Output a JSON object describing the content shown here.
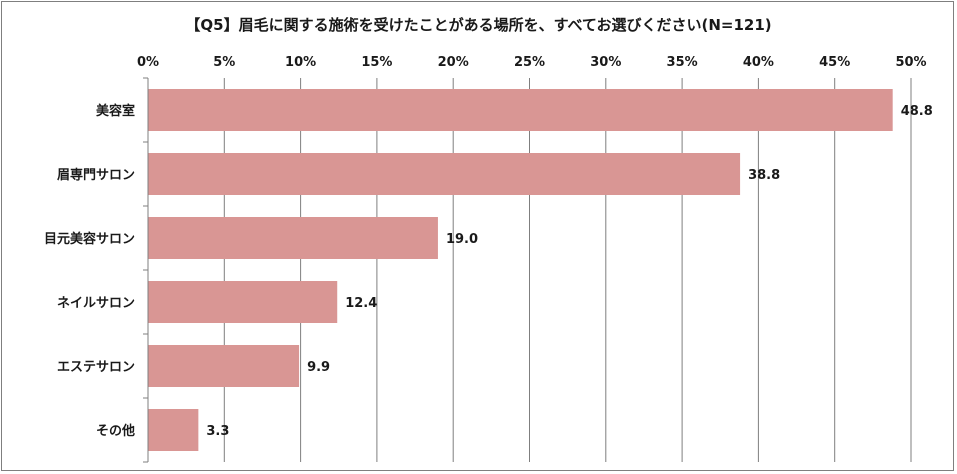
{
  "chart_data": {
    "type": "bar",
    "orientation": "horizontal",
    "title": "【Q5】眉毛に関する施術を受けたことがある場所を、すべてお選びください(N=121)",
    "categories": [
      "美容室",
      "眉専門サロン",
      "目元美容サロン",
      "ネイルサロン",
      "エステサロン",
      "その他"
    ],
    "values": [
      48.8,
      38.8,
      19.0,
      12.4,
      9.9,
      3.3
    ],
    "value_labels": [
      "48.8",
      "38.8",
      "19.0",
      "12.4",
      "9.9",
      "3.3"
    ],
    "x_ticks": [
      0,
      5,
      10,
      15,
      20,
      25,
      30,
      35,
      40,
      45,
      50
    ],
    "x_tick_labels": [
      "0%",
      "5%",
      "10%",
      "15%",
      "20%",
      "25%",
      "30%",
      "35%",
      "40%",
      "45%",
      "50%"
    ],
    "xlim": [
      0,
      50
    ],
    "x_axis_position": "top",
    "grid": true,
    "legend": "none",
    "colors": {
      "bar": "#d99694",
      "grid": "#7f7f7f",
      "axis": "#7f7f7f"
    }
  }
}
